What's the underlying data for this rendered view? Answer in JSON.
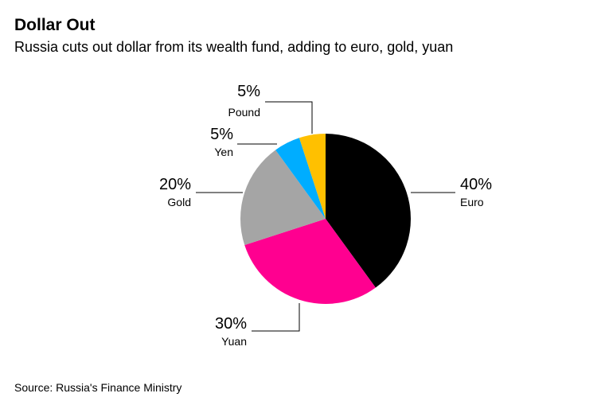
{
  "header": {
    "title": "Dollar Out",
    "subtitle": "Russia cuts out dollar from its wealth fund, adding to euro, gold, yuan"
  },
  "footer": {
    "source": "Source: Russia's Finance Ministry"
  },
  "chart_data": {
    "type": "pie",
    "title": "Dollar Out",
    "subtitle": "Russia cuts out dollar from its wealth fund, adding to euro, gold, yuan",
    "slices": [
      {
        "name": "Euro",
        "value": 40,
        "label": "40%",
        "color": "#000000"
      },
      {
        "name": "Yuan",
        "value": 30,
        "label": "30%",
        "color": "#ff0090"
      },
      {
        "name": "Gold",
        "value": 20,
        "label": "20%",
        "color": "#a5a5a5"
      },
      {
        "name": "Yen",
        "value": 5,
        "label": "5%",
        "color": "#00adff"
      },
      {
        "name": "Pound",
        "value": 5,
        "label": "5%",
        "color": "#ffc000"
      }
    ],
    "legend": "none"
  }
}
